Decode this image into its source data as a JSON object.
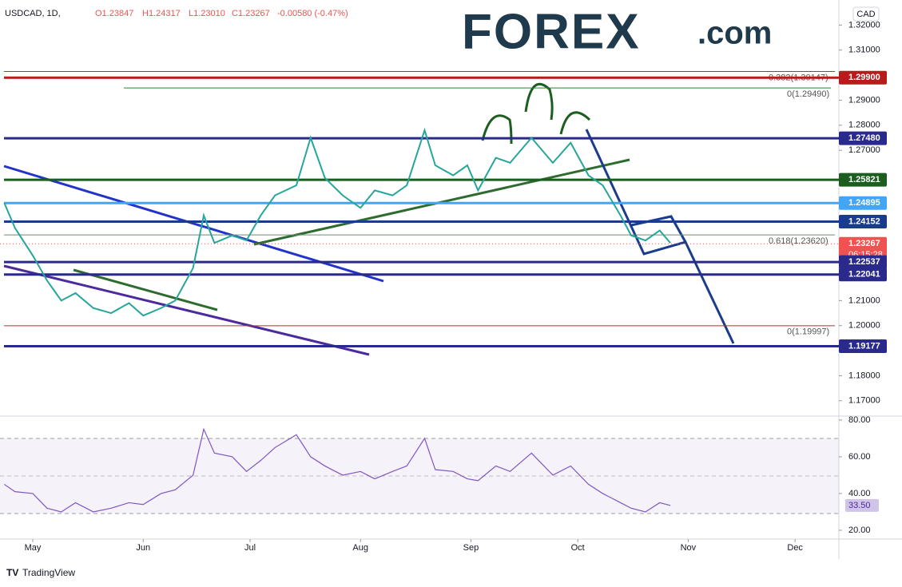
{
  "chart_data": {
    "type": "line",
    "header": {
      "symbol": "USDCAD, 1D,",
      "open": "O1.23847",
      "high": "H1.24317",
      "low": "L1.23010",
      "close": "C1.23267",
      "change": "-0.00580 (-0.47%)"
    },
    "logo": {
      "brand": "FOREX",
      "suffix": ".com"
    },
    "currency": "CAD",
    "footer": "TradingView",
    "countdown": "06:15:28",
    "x": [
      -8,
      -5,
      0,
      4,
      8,
      12,
      17,
      22,
      27,
      31,
      36,
      40,
      45,
      48,
      51,
      56,
      60,
      64,
      68,
      74,
      78,
      82,
      87,
      92,
      96,
      101,
      105,
      110,
      113,
      118,
      122,
      125,
      130,
      134,
      140,
      146,
      151,
      156,
      160,
      165,
      168,
      172,
      176,
      179
    ],
    "xlim": [
      -9.2,
      226.3
    ],
    "xticks": [
      {
        "value": 0,
        "label": "May"
      },
      {
        "value": 31,
        "label": "Jun"
      },
      {
        "value": 61,
        "label": "Jul"
      },
      {
        "value": 92,
        "label": "Aug"
      },
      {
        "value": 123,
        "label": "Sep"
      },
      {
        "value": 153,
        "label": "Oct"
      },
      {
        "value": 184,
        "label": "Nov"
      },
      {
        "value": 214,
        "label": "Dec"
      }
    ],
    "series": [
      {
        "name": "USDCAD",
        "color": "#26a69a",
        "values": [
          1.249,
          1.239,
          1.228,
          1.218,
          1.21,
          1.213,
          1.207,
          1.205,
          1.209,
          1.204,
          1.207,
          1.21,
          1.223,
          1.244,
          1.233,
          1.236,
          1.234,
          1.244,
          1.252,
          1.256,
          1.275,
          1.259,
          1.252,
          1.247,
          1.254,
          1.252,
          1.256,
          1.278,
          1.264,
          1.26,
          1.264,
          1.254,
          1.267,
          1.265,
          1.275,
          1.265,
          1.273,
          1.26,
          1.256,
          1.244,
          1.236,
          1.234,
          1.238,
          1.233
        ]
      }
    ],
    "ylim": [
      1.1642,
      1.33
    ],
    "yticks": [
      {
        "value": 1.32,
        "label": "1.32000"
      },
      {
        "value": 1.31,
        "label": "1.31000"
      },
      {
        "value": 1.29,
        "label": "1.29000"
      },
      {
        "value": 1.28,
        "label": "1.28000"
      },
      {
        "value": 1.27,
        "label": "1.27000"
      },
      {
        "value": 1.21,
        "label": "1.21000"
      },
      {
        "value": 1.2,
        "label": "1.20000"
      },
      {
        "value": 1.18,
        "label": "1.18000"
      },
      {
        "value": 1.17,
        "label": "1.17000"
      }
    ],
    "levels": [
      {
        "value": 1.299,
        "label": "1.29900",
        "color": "#b71c1c"
      },
      {
        "value": 1.2748,
        "label": "1.27480",
        "color": "#2a2a8c"
      },
      {
        "value": 1.25821,
        "label": "1.25821",
        "color": "#1b5e20"
      },
      {
        "value": 1.24895,
        "label": "1.24895",
        "color": "#42a5f5"
      },
      {
        "value": 1.24152,
        "label": "1.24152",
        "color": "#1a3c8c"
      },
      {
        "value": 1.23267,
        "label": "1.23267",
        "color": "#ef5350"
      },
      {
        "value": 1.22537,
        "label": "1.22537",
        "color": "#2a2a8c"
      },
      {
        "value": 1.22041,
        "label": "1.22041",
        "color": "#2a2a8c"
      },
      {
        "value": 1.19177,
        "label": "1.19177",
        "color": "#2a2a8c"
      }
    ],
    "fibs": [
      {
        "value": 1.30147,
        "label": "0.382(1.30147)",
        "color": "#c62828"
      },
      {
        "value": 1.2949,
        "label": "0(1.29490)",
        "color": "#2e7d32"
      },
      {
        "value": 1.2362,
        "label": "0.618(1.23620)",
        "color": "#6d8b6d"
      },
      {
        "value": 1.19997,
        "label": "0(1.19997)",
        "color": "#c62828"
      }
    ],
    "rsi": {
      "color": "#7e57c2",
      "values": [
        45,
        41,
        40,
        32,
        30,
        35,
        30,
        32,
        35,
        34,
        40,
        42,
        50,
        75,
        62,
        60,
        52,
        58,
        65,
        72,
        60,
        55,
        50,
        52,
        48,
        52,
        55,
        70,
        53,
        52,
        48,
        47,
        55,
        52,
        62,
        50,
        55,
        45,
        40,
        35,
        32,
        30,
        35,
        33.5
      ],
      "current": {
        "value": 33.5,
        "label": "33.50"
      },
      "ylim": [
        15.2,
        81.7
      ],
      "yticks": [
        {
          "value": 80,
          "label": "80.00"
        },
        {
          "value": 60,
          "label": "60.00"
        },
        {
          "value": 40,
          "label": "40.00"
        },
        {
          "value": 20,
          "label": "20.00"
        }
      ]
    }
  }
}
